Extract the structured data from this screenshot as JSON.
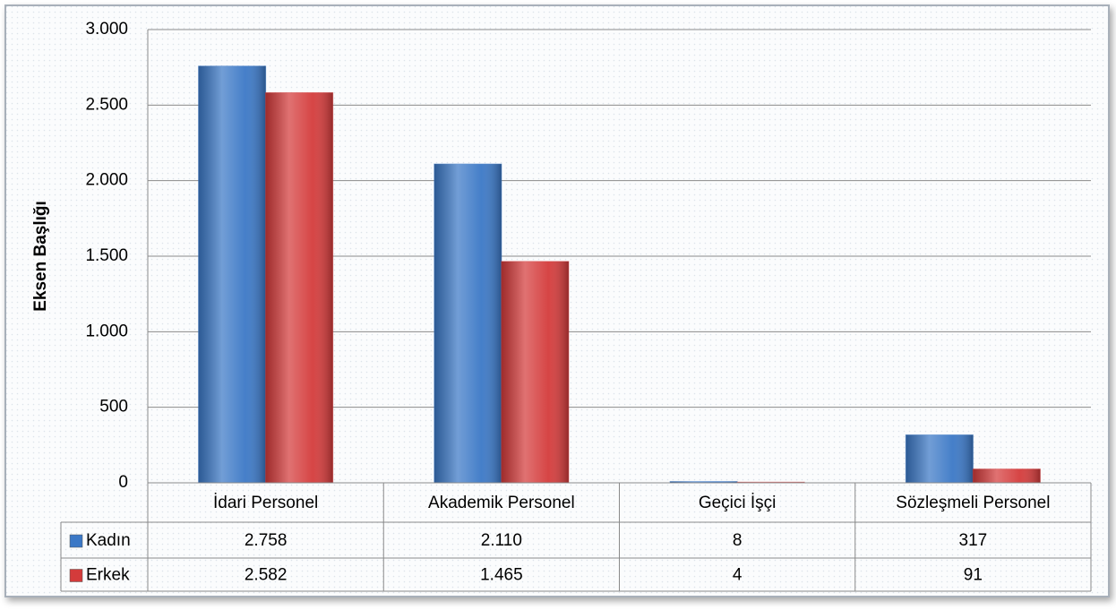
{
  "chart_data": {
    "type": "bar",
    "y_axis_label": "Eksen Başlığı",
    "categories": [
      "İdari Personel",
      "Akademik Personel",
      "Geçici İşçi",
      "Sözleşmeli Personel"
    ],
    "series": [
      {
        "name": "Kadın",
        "color": "#3b78c6",
        "values": [
          2758,
          2110,
          8,
          317
        ],
        "value_labels": [
          "2.758",
          "2.110",
          "8",
          "317"
        ]
      },
      {
        "name": "Erkek",
        "color": "#d43b3b",
        "values": [
          2582,
          1465,
          4,
          91
        ],
        "value_labels": [
          "2.582",
          "1.465",
          "4",
          "91"
        ]
      }
    ],
    "ylim": [
      0,
      3000
    ],
    "yticks": [
      0,
      500,
      {
        "value": 1000,
        "label": "1.000"
      },
      {
        "value": 1500,
        "label": "1.500"
      },
      {
        "value": 2000,
        "label": "2.000"
      },
      {
        "value": 2500,
        "label": "2.500"
      },
      {
        "value": 3000,
        "label": "3.000"
      }
    ],
    "grid": true,
    "data_table": true
  }
}
